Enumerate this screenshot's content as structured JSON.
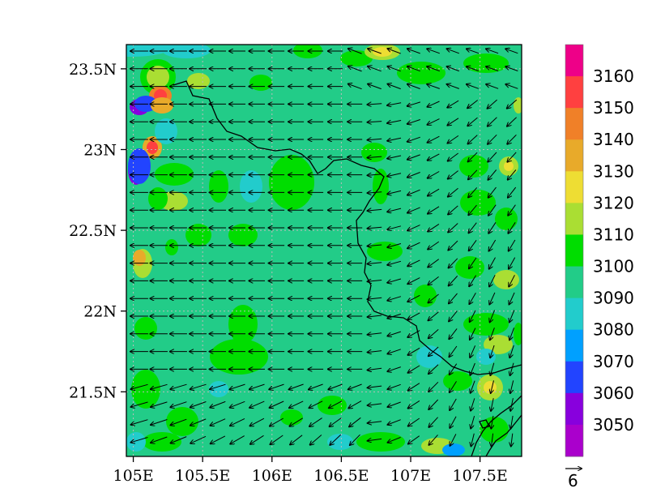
{
  "map": {
    "lon_range": [
      104.95,
      107.8
    ],
    "lat_range": [
      21.1,
      23.65
    ],
    "background_value": 3090,
    "blob_colors": {
      "cyan": "#22cccc",
      "light_green": "#00dd00",
      "yellow_green": "#aade33",
      "yellow": "#eedd33",
      "orange_yellow": "#e8aa2a",
      "orange": "#f08028",
      "red": "#ff4040",
      "purple": "#8800dd",
      "violet": "#aa00cc",
      "blue": "#2244ff",
      "light_blue": "#00a0ff"
    },
    "gridlines": true,
    "gridline_color": "#bbbbbb",
    "wind_vectors": true,
    "wind_direction_summary": "easterly west of 106.5E turning south-easterly east of 106.5E",
    "boundary_color": "#000000"
  },
  "axes": {
    "x_ticks": [
      {
        "value": 105.0,
        "label": "105E"
      },
      {
        "value": 105.5,
        "label": "105.5E"
      },
      {
        "value": 106.0,
        "label": "106E"
      },
      {
        "value": 106.5,
        "label": "106.5E"
      },
      {
        "value": 107.0,
        "label": "107E"
      },
      {
        "value": 107.5,
        "label": "107.5E"
      }
    ],
    "y_ticks": [
      {
        "value": 21.5,
        "label": "21.5N"
      },
      {
        "value": 22.0,
        "label": "22N"
      },
      {
        "value": 22.5,
        "label": "22.5N"
      },
      {
        "value": 23.0,
        "label": "23N"
      },
      {
        "value": 23.5,
        "label": "23.5N"
      }
    ]
  },
  "colorbar": {
    "labels": [
      "3160",
      "3150",
      "3140",
      "3130",
      "3120",
      "3110",
      "3100",
      "3090",
      "3080",
      "3070",
      "3060",
      "3050"
    ],
    "colors": [
      "#ee0088",
      "#ff4040",
      "#f08028",
      "#e8aa2a",
      "#eedd33",
      "#aade33",
      "#00dd00",
      "#22cc88",
      "#22cccc",
      "#00a0ff",
      "#2244ff",
      "#8800dd",
      "#aa00cc"
    ]
  },
  "reference_vector": {
    "label": "6"
  }
}
